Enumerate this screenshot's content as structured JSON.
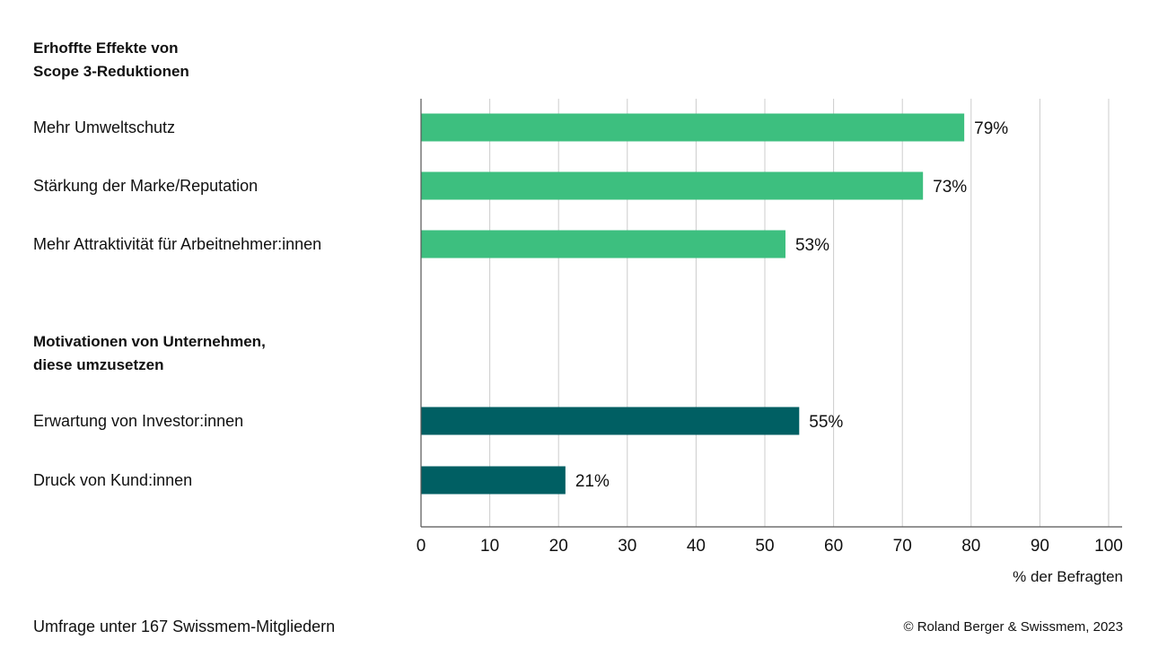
{
  "chart_data": {
    "type": "bar",
    "orientation": "horizontal",
    "groups": [
      {
        "title": "Erhoffte Effekte von Scope 3-Reduktionen",
        "title_lines": [
          "Erhoffte Effekte von",
          "Scope 3-Reduktionen"
        ],
        "color": "#3dbf7f",
        "categories": [
          "Mehr Umweltschutz",
          "Stärkung der Marke/Reputation",
          "Mehr Attraktivität für Arbeitnehmer:innen"
        ],
        "values": [
          79,
          73,
          53
        ],
        "value_labels": [
          "79%",
          "73%",
          "53%"
        ]
      },
      {
        "title": "Motivationen von Unternehmen, diese umzusetzen",
        "title_lines": [
          "Motivationen von Unternehmen,",
          "diese umzusetzen"
        ],
        "color": "#005f63",
        "categories": [
          "Erwartung von Investor:innen",
          "Druck von Kund:innen"
        ],
        "values": [
          55,
          21
        ],
        "value_labels": [
          "55%",
          "21%"
        ]
      }
    ],
    "xlim": [
      0,
      100
    ],
    "xticks": [
      0,
      10,
      20,
      30,
      40,
      50,
      60,
      70,
      80,
      90,
      100
    ],
    "xlabel": "% der Befragten",
    "grid": true
  },
  "footer": {
    "source_note": "Umfrage unter 167 Swissmem-Mitgliedern",
    "copyright": "© Roland Berger & Swissmem, 2023"
  },
  "colors": {
    "gridline": "#cccccc",
    "axis": "#555555",
    "text": "#111111"
  }
}
